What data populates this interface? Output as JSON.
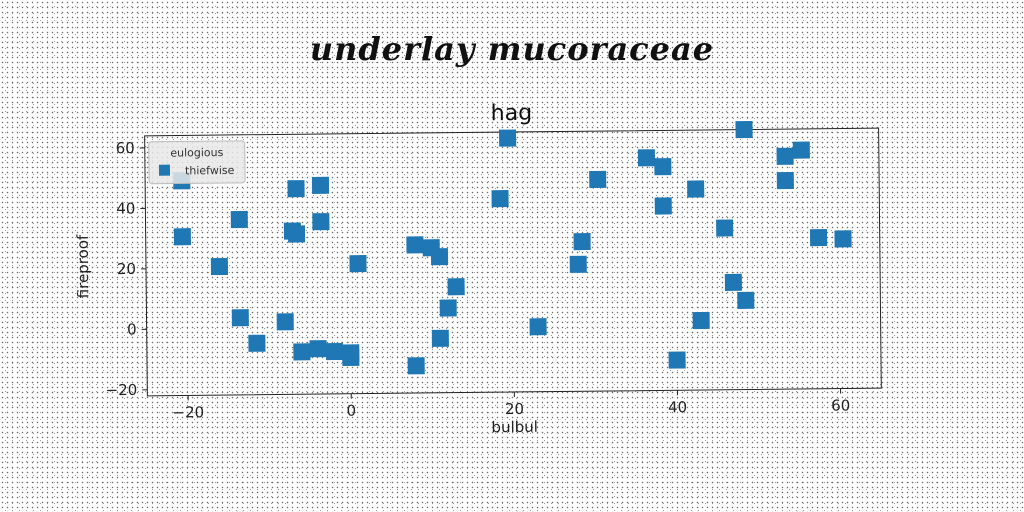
{
  "suptitle": "underlay mucoraceae",
  "chart_data": {
    "type": "scatter",
    "title": "hag",
    "xlabel": "bulbul",
    "ylabel": "fireproof",
    "xlim": [
      -25,
      65
    ],
    "ylim": [
      -22,
      64
    ],
    "xticks": [
      -20,
      0,
      20,
      40,
      60
    ],
    "yticks": [
      -20,
      0,
      20,
      40,
      60
    ],
    "grid": false,
    "legend": {
      "title": "eulogious",
      "placement": "top-left"
    },
    "series": [
      {
        "name": "thiefwise",
        "color": "#1f77b4",
        "marker": "square",
        "points": [
          [
            -20.5,
            49
          ],
          [
            -20.5,
            30.5
          ],
          [
            -16,
            20.5
          ],
          [
            -13.5,
            36
          ],
          [
            -13.5,
            3.5
          ],
          [
            -11.5,
            -5
          ],
          [
            -8,
            2
          ],
          [
            -7,
            32
          ],
          [
            -6.5,
            31
          ],
          [
            -6.5,
            46
          ],
          [
            -6,
            -8
          ],
          [
            -4,
            -7
          ],
          [
            -3.5,
            47
          ],
          [
            -3.5,
            35
          ],
          [
            -2,
            -8
          ],
          [
            0,
            -10
          ],
          [
            0,
            -8.5
          ],
          [
            1,
            21
          ],
          [
            8,
            -13
          ],
          [
            8,
            27
          ],
          [
            10,
            26
          ],
          [
            11,
            23
          ],
          [
            11,
            -4
          ],
          [
            12,
            6
          ],
          [
            13,
            13
          ],
          [
            18.5,
            42
          ],
          [
            19.5,
            62
          ],
          [
            23,
            -0.5
          ],
          [
            28,
            20
          ],
          [
            28.5,
            27.5
          ],
          [
            30.5,
            48
          ],
          [
            36.5,
            55
          ],
          [
            38.5,
            52
          ],
          [
            38.5,
            39
          ],
          [
            40,
            -12
          ],
          [
            42.5,
            44.5
          ],
          [
            43,
            1
          ],
          [
            46,
            31.5
          ],
          [
            47,
            13.5
          ],
          [
            48.5,
            7.5
          ],
          [
            48.5,
            64
          ],
          [
            53.5,
            55
          ],
          [
            53.5,
            47
          ],
          [
            55.5,
            57
          ],
          [
            57.5,
            28
          ],
          [
            60.5,
            27.5
          ]
        ]
      }
    ]
  }
}
